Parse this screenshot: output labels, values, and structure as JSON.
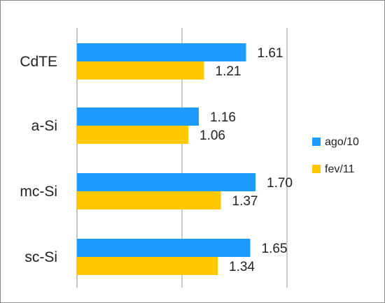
{
  "chart_data": {
    "type": "bar",
    "orientation": "horizontal",
    "categories": [
      "CdTE",
      "a-Si",
      "mc-Si",
      "sc-Si"
    ],
    "series": [
      {
        "name": "ago/10",
        "values": [
          1.61,
          1.16,
          1.7,
          1.65
        ],
        "color": "#1e9bff"
      },
      {
        "name": "fev/11",
        "values": [
          1.21,
          1.06,
          1.37,
          1.34
        ],
        "color": "#ffc800"
      }
    ],
    "value_labels": {
      "ago/10": [
        "1.61",
        "1.16",
        "1.70",
        "1.65"
      ],
      "fev/11": [
        "1.21",
        "1.06",
        "1.37",
        "1.34"
      ]
    },
    "title": "",
    "xlabel": "",
    "ylabel": "",
    "xlim": [
      0,
      2.0
    ],
    "gridlines": true,
    "legend_position": "right"
  }
}
